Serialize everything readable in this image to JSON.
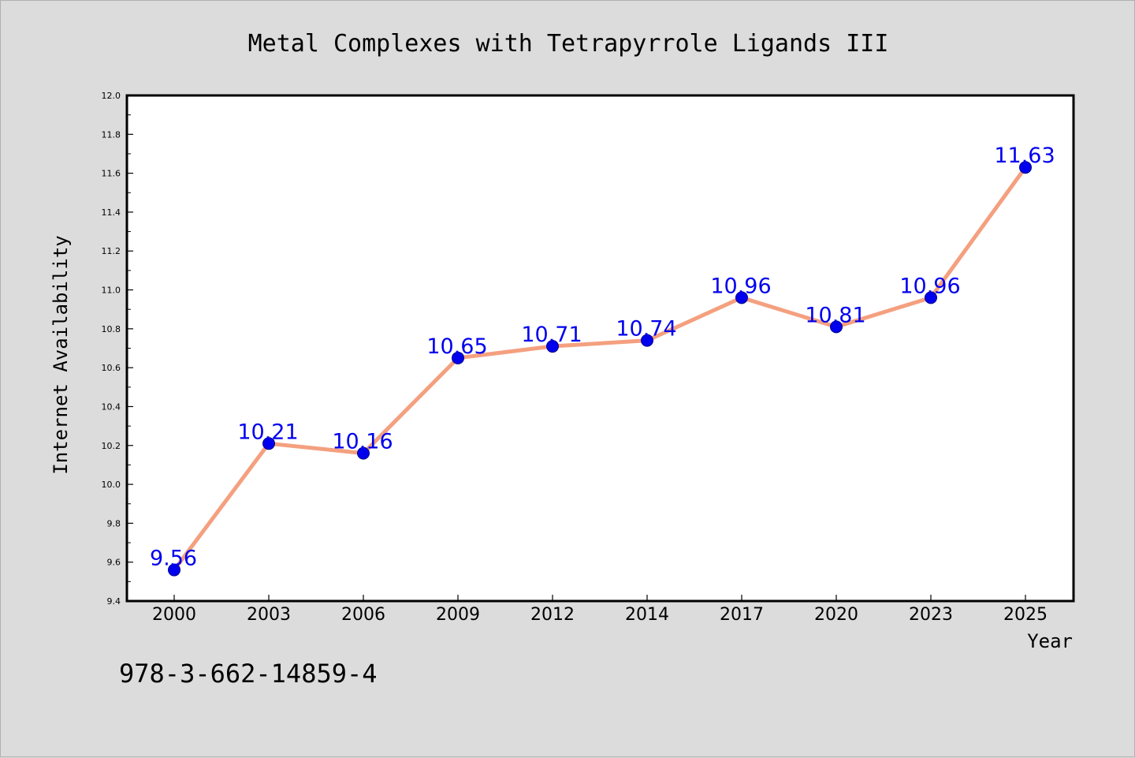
{
  "chart_data": {
    "type": "line",
    "title": "Metal Complexes with Tetrapyrrole Ligands III",
    "xlabel": "Year",
    "ylabel": "Internet Availability",
    "categories": [
      "2000",
      "2003",
      "2006",
      "2009",
      "2012",
      "2014",
      "2017",
      "2020",
      "2023",
      "2025"
    ],
    "values": [
      9.56,
      10.21,
      10.16,
      10.65,
      10.71,
      10.74,
      10.96,
      10.81,
      10.96,
      11.63
    ],
    "data_labels": [
      "9.56",
      "10.21",
      "10.16",
      "10.65",
      "10.71",
      "10.74",
      "10.96",
      "10.81",
      "10.96",
      "11.63"
    ],
    "yticks": [
      "9.4",
      "9.6",
      "9.8",
      "10.0",
      "10.2",
      "10.4",
      "10.6",
      "10.8",
      "11.0",
      "11.2",
      "11.4",
      "11.6",
      "11.8",
      "12.0"
    ],
    "ylim": [
      9.4,
      12.0
    ],
    "grid": false,
    "legend": "none",
    "colors": {
      "line": "#f4a07f",
      "marker": "#0000ee",
      "label": "#0000ee",
      "page_background": "#dcdcdc",
      "plot_background": "#ffffff"
    }
  },
  "footer": {
    "isbn": "978-3-662-14859-4"
  }
}
